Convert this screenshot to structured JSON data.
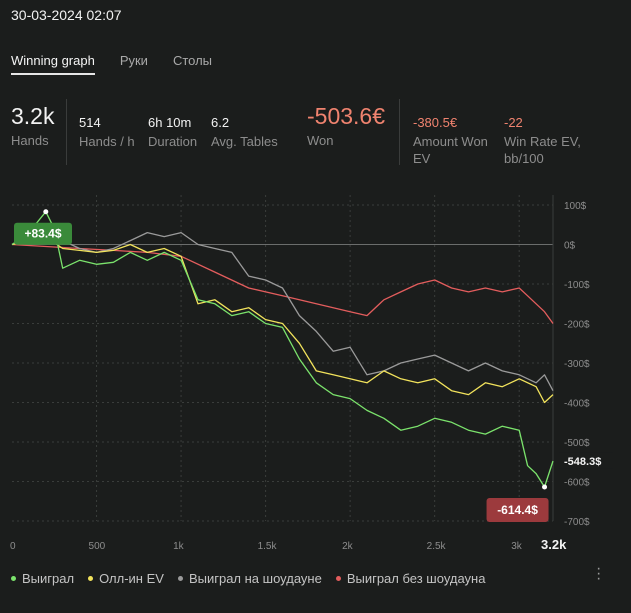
{
  "header": {
    "datetime": "30-03-2024 02:07"
  },
  "tabs": [
    {
      "label": "Winning graph",
      "active": true
    },
    {
      "label": "Руки",
      "active": false
    },
    {
      "label": "Столы",
      "active": false
    }
  ],
  "stats": {
    "hands": {
      "value": "3.2k",
      "label": "Hands"
    },
    "hands_per_hour": {
      "value": "514",
      "label": "Hands / h"
    },
    "duration": {
      "value": "6h 10m",
      "label": "Duration"
    },
    "avg_tables": {
      "value": "6.2",
      "label": "Avg. Tables"
    },
    "won": {
      "value": "-503.6€",
      "label": "Won"
    },
    "amount_won_ev": {
      "value": "-380.5€",
      "label1": "Amount Won",
      "label2": "EV"
    },
    "win_rate_ev": {
      "value": "-22",
      "label1": "Win Rate EV,",
      "label2": "bb/100"
    }
  },
  "chart_data": {
    "type": "line",
    "x_ticks": [
      "0",
      "500",
      "1k",
      "1.5k",
      "2k",
      "2.5k",
      "3k",
      "3.2k"
    ],
    "x_tick_values": [
      0,
      500,
      1000,
      1500,
      2000,
      2500,
      3000,
      3200
    ],
    "y_ticks": [
      "100$",
      "0$",
      "-100$",
      "-200$",
      "-300$",
      "-400$",
      "-500$",
      "-600$",
      "-700$"
    ],
    "y_tick_values": [
      100,
      0,
      -100,
      -200,
      -300,
      -400,
      -500,
      -600,
      -700
    ],
    "xlim": [
      0,
      3200
    ],
    "ylim": [
      -700,
      100
    ],
    "annotations": {
      "max_label": "+83.4$",
      "min_label": "-614.4$",
      "end_label": "-548.3$"
    },
    "series": [
      {
        "name": "Выиграл",
        "color": "#7be36c",
        "x": [
          0,
          100,
          200,
          250,
          300,
          400,
          500,
          600,
          700,
          800,
          900,
          1000,
          1100,
          1200,
          1300,
          1400,
          1500,
          1600,
          1700,
          1800,
          1900,
          2000,
          2100,
          2200,
          2300,
          2400,
          2500,
          2600,
          2700,
          2800,
          2900,
          3000,
          3050,
          3100,
          3150,
          3200
        ],
        "y": [
          0,
          30,
          83,
          40,
          -60,
          -40,
          -50,
          -45,
          -20,
          -40,
          -20,
          -40,
          -140,
          -150,
          -180,
          -170,
          -200,
          -210,
          -290,
          -350,
          -380,
          -390,
          -420,
          -440,
          -470,
          -460,
          -440,
          -450,
          -470,
          -480,
          -460,
          -470,
          -560,
          -580,
          -614,
          -548
        ]
      },
      {
        "name": "Олл-ин EV",
        "color": "#f2e35c",
        "x": [
          0,
          100,
          200,
          300,
          400,
          500,
          600,
          700,
          800,
          900,
          1000,
          1100,
          1200,
          1300,
          1400,
          1500,
          1600,
          1700,
          1800,
          1900,
          2000,
          2100,
          2200,
          2300,
          2400,
          2500,
          2600,
          2700,
          2800,
          2900,
          3000,
          3100,
          3150,
          3200
        ],
        "y": [
          0,
          10,
          20,
          -10,
          -15,
          -20,
          -15,
          0,
          -20,
          -10,
          -30,
          -150,
          -140,
          -170,
          -160,
          -190,
          -200,
          -250,
          -320,
          -330,
          -340,
          -350,
          -320,
          -340,
          -350,
          -340,
          -370,
          -380,
          -350,
          -360,
          -340,
          -360,
          -400,
          -380
        ]
      },
      {
        "name": "Выиграл на шоудауне",
        "color": "#9a9a9a",
        "x": [
          0,
          100,
          200,
          300,
          400,
          500,
          600,
          700,
          800,
          900,
          1000,
          1100,
          1200,
          1300,
          1400,
          1500,
          1600,
          1700,
          1800,
          1900,
          2000,
          2100,
          2200,
          2300,
          2400,
          2500,
          2600,
          2700,
          2800,
          2900,
          3000,
          3100,
          3150,
          3200
        ],
        "y": [
          0,
          20,
          40,
          10,
          -10,
          -20,
          -10,
          10,
          30,
          20,
          30,
          0,
          -10,
          -20,
          -80,
          -90,
          -110,
          -180,
          -220,
          -270,
          -260,
          -330,
          -320,
          -300,
          -290,
          -280,
          -300,
          -320,
          -300,
          -320,
          -330,
          -350,
          -330,
          -370
        ]
      },
      {
        "name": "Выиграл без шоудауна",
        "color": "#e35d5d",
        "x": [
          0,
          200,
          400,
          600,
          800,
          1000,
          1200,
          1400,
          1600,
          1800,
          2000,
          2100,
          2200,
          2300,
          2400,
          2500,
          2600,
          2700,
          2800,
          2900,
          3000,
          3050,
          3100,
          3150,
          3200
        ],
        "y": [
          0,
          -5,
          -10,
          -15,
          -20,
          -30,
          -70,
          -110,
          -130,
          -150,
          -170,
          -180,
          -140,
          -120,
          -100,
          -90,
          -110,
          -120,
          -110,
          -120,
          -110,
          -130,
          -150,
          -170,
          -200
        ]
      }
    ]
  },
  "legend": [
    {
      "label": "Выиграл",
      "color": "#7be36c"
    },
    {
      "label": "Олл-ин EV",
      "color": "#f2e35c"
    },
    {
      "label": "Выиграл на шоудауне",
      "color": "#9a9a9a"
    },
    {
      "label": "Выиграл без шоудауна",
      "color": "#e35d5d"
    }
  ]
}
